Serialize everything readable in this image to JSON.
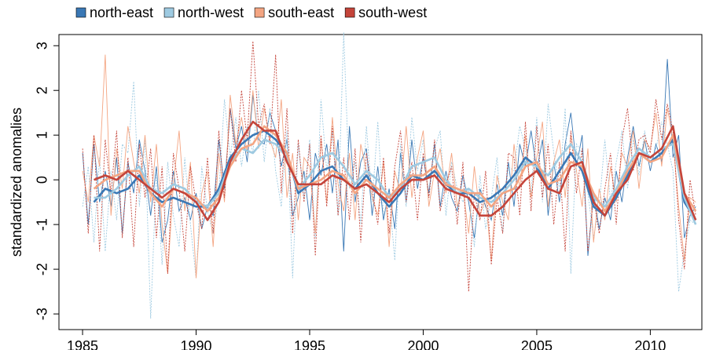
{
  "chart_data": {
    "type": "line",
    "ylabel": "standardized anomalies",
    "xlim": [
      1983.96,
      2012.27
    ],
    "ylim": [
      -3.35,
      3.25
    ],
    "xticks": [
      1985,
      1990,
      1995,
      2000,
      2005,
      2010
    ],
    "yticks": [
      -3,
      -2,
      -1,
      0,
      1,
      2,
      3
    ],
    "x": [
      1985,
      1985.25,
      1985.5,
      1985.75,
      1986,
      1986.25,
      1986.5,
      1986.75,
      1987,
      1987.25,
      1987.5,
      1987.75,
      1988,
      1988.25,
      1988.5,
      1988.75,
      1989,
      1989.25,
      1989.5,
      1989.75,
      1990,
      1990.25,
      1990.5,
      1990.75,
      1991,
      1991.25,
      1991.5,
      1991.75,
      1992,
      1992.25,
      1992.5,
      1992.75,
      1993,
      1993.25,
      1993.5,
      1993.75,
      1994,
      1994.25,
      1994.5,
      1994.75,
      1995,
      1995.25,
      1995.5,
      1995.75,
      1996,
      1996.25,
      1996.5,
      1996.75,
      1997,
      1997.25,
      1997.5,
      1997.75,
      1998,
      1998.25,
      1998.5,
      1998.75,
      1999,
      1999.25,
      1999.5,
      1999.75,
      2000,
      2000.25,
      2000.5,
      2000.75,
      2001,
      2001.25,
      2001.5,
      2001.75,
      2002,
      2002.25,
      2002.5,
      2002.75,
      2003,
      2003.25,
      2003.5,
      2003.75,
      2004,
      2004.25,
      2004.5,
      2004.75,
      2005,
      2005.25,
      2005.5,
      2005.75,
      2006,
      2006.25,
      2006.5,
      2006.75,
      2007,
      2007.25,
      2007.5,
      2007.75,
      2008,
      2008.25,
      2008.5,
      2008.75,
      2009,
      2009.25,
      2009.5,
      2009.75,
      2010,
      2010.25,
      2010.5,
      2010.75,
      2011,
      2011.25,
      2011.5,
      2011.75,
      2012
    ],
    "series": [
      {
        "name": "north-east",
        "color": "#3a78b5",
        "values": [
          0.6,
          -1.0,
          0.8,
          -0.5,
          0.2,
          -0.6,
          0.5,
          -1.2,
          0.4,
          -0.3,
          0.9,
          0.2,
          -0.8,
          0.3,
          -1.4,
          -0.9,
          0.2,
          -0.7,
          -0.4,
          -0.9,
          -0.3,
          -1.1,
          -0.6,
          -0.8,
          0.9,
          -0.2,
          1.6,
          0.7,
          1.2,
          0.4,
          1.9,
          0.9,
          0.8,
          1.5,
          1.1,
          0.3,
          0.9,
          -0.8,
          -0.4,
          0.2,
          -0.9,
          0.6,
          0.1,
          0.8,
          -0.3,
          0.9,
          -1.6,
          1.2,
          -0.5,
          0.4,
          0.7,
          -0.8,
          0.3,
          -0.9,
          -0.2,
          -1.1,
          0.6,
          -0.5,
          0.9,
          -0.2,
          0.5,
          -0.3,
          0.8,
          -0.6,
          0.2,
          -0.4,
          -0.7,
          0.1,
          -0.5,
          -1.3,
          -0.2,
          -0.6,
          -0.9,
          -0.1,
          -0.8,
          0.4,
          -0.6,
          0.8,
          0.3,
          1.1,
          0.2,
          0.9,
          -0.8,
          0.4,
          -0.5,
          0.8,
          1.5,
          0.3,
          1.0,
          -1.7,
          -0.3,
          -1.1,
          -0.4,
          -0.9,
          0.2,
          -0.5,
          0.5,
          1.2,
          0.3,
          0.9,
          0.2,
          0.8,
          0.4,
          2.7,
          0.5,
          1.0,
          -1.3,
          -0.8,
          -0.6
        ]
      },
      {
        "name": "north-west",
        "color": "#9ecae1",
        "values": [
          -0.6,
          0.3,
          -1.4,
          0.5,
          -1.6,
          0.2,
          -0.9,
          0.8,
          0.6,
          2.2,
          -0.6,
          0.9,
          -3.1,
          0.2,
          -1.9,
          0.4,
          -0.8,
          -1.5,
          0.5,
          -1.0,
          -2.2,
          0.3,
          -0.7,
          -1.2,
          -0.3,
          1.8,
          0.5,
          1.4,
          0.3,
          1.2,
          0.6,
          2.0,
          0.4,
          1.6,
          0.2,
          -0.6,
          1.1,
          -2.2,
          0.8,
          -0.4,
          0.9,
          -1.3,
          1.8,
          0.2,
          1.1,
          -0.8,
          3.3,
          -0.2,
          0.4,
          -1.0,
          1.2,
          -0.5,
          1.3,
          -0.8,
          -0.3,
          -1.8,
          0.8,
          -0.6,
          1.4,
          0.2,
          0.9,
          -0.4,
          0.7,
          1.1,
          -0.8,
          0.4,
          -0.2,
          -0.5,
          -0.2,
          -1.5,
          0.1,
          -1.1,
          -0.4,
          0.5,
          -1.2,
          0.3,
          0.2,
          1.2,
          0.7,
          -0.3,
          1.4,
          -0.5,
          1.7,
          0.6,
          -0.2,
          1.6,
          -2.1,
          0.8,
          0.6,
          -0.3,
          -1.3,
          -0.6,
          0.9,
          -0.5,
          0.4,
          1.1,
          -0.2,
          0.9,
          0.1,
          1.1,
          0.4,
          0.7,
          1.3,
          0.8,
          0.2,
          -2.5,
          -1.6,
          -0.9,
          -1.0
        ]
      },
      {
        "name": "south-east",
        "color": "#f4a582",
        "values": [
          0.2,
          -0.5,
          1.0,
          0.3,
          2.8,
          -0.8,
          0.7,
          -0.2,
          1.2,
          0.4,
          -0.3,
          1.0,
          -0.5,
          0.8,
          -1.0,
          -2.1,
          -0.1,
          1.1,
          -0.7,
          0.4,
          -2.2,
          -0.3,
          0.2,
          -1.5,
          0.6,
          -0.5,
          1.9,
          0.8,
          1.4,
          0.6,
          2.0,
          0.7,
          1.6,
          0.9,
          0.5,
          1.8,
          -0.4,
          0.6,
          -0.9,
          0.5,
          0.3,
          -1.2,
          0.9,
          -0.5,
          1.4,
          -0.1,
          -0.7,
          0.6,
          -0.9,
          0.8,
          0.2,
          -0.4,
          -0.8,
          0.4,
          -1.5,
          0.2,
          -0.3,
          1.2,
          -0.4,
          0.5,
          1.1,
          -0.6,
          0.2,
          0.7,
          -0.3,
          0.6,
          -0.6,
          -0.2,
          -1.2,
          0.3,
          -0.8,
          -0.4,
          -1.8,
          0.1,
          -0.5,
          -0.9,
          0.8,
          -0.2,
          1.0,
          -0.4,
          0.5,
          1.3,
          -0.6,
          0.4,
          0.9,
          -0.4,
          1.0,
          0.2,
          -0.6,
          0.7,
          -1.4,
          -0.2,
          -0.9,
          0.3,
          -0.5,
          0.6,
          0.3,
          1.1,
          -0.2,
          0.9,
          0.7,
          1.5,
          0.3,
          1.6,
          0.9,
          -0.6,
          -1.8,
          -0.4,
          -0.5
        ]
      },
      {
        "name": "south-west",
        "color": "#c4443a",
        "values": [
          0.7,
          -1.2,
          1.0,
          -1.6,
          0.9,
          -0.3,
          1.1,
          -1.3,
          0.5,
          -1.5,
          0.8,
          -0.4,
          0.7,
          -1.3,
          0.3,
          -2.1,
          0.6,
          -0.2,
          -1.6,
          0.3,
          -0.5,
          -1.1,
          0.5,
          -1.2,
          1.1,
          -0.4,
          1.6,
          0.4,
          2.0,
          0.9,
          3.1,
          1.2,
          1.7,
          0.8,
          2.8,
          -0.3,
          1.6,
          -1.2,
          0.9,
          -0.5,
          0.8,
          -1.7,
          1.0,
          -0.6,
          1.2,
          -0.8,
          0.5,
          -0.9,
          0.7,
          -1.4,
          0.6,
          -0.2,
          -1.0,
          0.5,
          -1.2,
          0.3,
          1.1,
          -0.5,
          0.4,
          -0.9,
          0.6,
          -0.4,
          0.9,
          -0.7,
          -0.1,
          0.3,
          -1.0,
          0.4,
          -2.5,
          -0.3,
          -0.9,
          0.2,
          -1.9,
          -0.4,
          -1.2,
          0.6,
          0.5,
          -0.8,
          1.3,
          -0.7,
          1.2,
          -0.4,
          0.8,
          -1.0,
          0.4,
          -1.6,
          1.1,
          -0.3,
          0.7,
          -1.6,
          -0.4,
          -1.2,
          -0.2,
          0.6,
          -1.0,
          0.9,
          1.6,
          0.2,
          0.9,
          1.0,
          0.6,
          1.8,
          0.9,
          1.7,
          1.1,
          -0.9,
          -2.0,
          0.0,
          -0.8
        ]
      }
    ],
    "smoothed": {
      "x": [
        1985,
        1985.5,
        1986,
        1986.5,
        1987,
        1987.5,
        1988,
        1988.5,
        1989,
        1989.5,
        1990,
        1990.5,
        1991,
        1991.5,
        1992,
        1992.5,
        1993,
        1993.5,
        1994,
        1994.5,
        1995,
        1995.5,
        1996,
        1996.5,
        1997,
        1997.5,
        1998,
        1998.5,
        1999,
        1999.5,
        2000,
        2000.5,
        2001,
        2001.5,
        2002,
        2002.5,
        2003,
        2003.5,
        2004,
        2004.5,
        2005,
        2005.5,
        2006,
        2006.5,
        2007,
        2007.5,
        2008,
        2008.5,
        2009,
        2009.5,
        2010,
        2010.5,
        2011,
        2011.5,
        2012
      ],
      "series": [
        {
          "color": "#3a78b5",
          "values": [
            null,
            -0.5,
            -0.2,
            -0.3,
            -0.2,
            0.1,
            -0.3,
            -0.5,
            -0.4,
            -0.5,
            -0.6,
            -0.6,
            -0.2,
            0.5,
            0.8,
            1.0,
            1.1,
            0.9,
            0.6,
            -0.3,
            -0.1,
            0.2,
            0.3,
            0.0,
            -0.2,
            0.1,
            -0.3,
            -0.6,
            -0.3,
            0.1,
            0.0,
            0.2,
            -0.1,
            -0.3,
            -0.3,
            -0.5,
            -0.4,
            -0.2,
            0.1,
            0.5,
            0.3,
            -0.2,
            0.2,
            0.6,
            0.2,
            -0.6,
            -0.8,
            -0.4,
            0.1,
            0.6,
            0.4,
            0.6,
            0.9,
            -0.5,
            -0.9
          ]
        },
        {
          "color": "#9ecae1",
          "values": [
            null,
            -0.4,
            -0.4,
            -0.2,
            0.1,
            0.3,
            -0.2,
            -0.3,
            -0.1,
            -0.2,
            -0.5,
            -0.6,
            -0.3,
            0.4,
            0.7,
            0.6,
            0.9,
            0.8,
            0.5,
            -0.2,
            0.1,
            0.5,
            0.6,
            0.3,
            -0.1,
            0.2,
            0.0,
            -0.4,
            -0.2,
            0.3,
            0.4,
            0.5,
            0.0,
            -0.3,
            -0.2,
            -0.4,
            -0.5,
            -0.3,
            0.0,
            0.4,
            0.3,
            0.1,
            0.5,
            0.8,
            0.4,
            -0.4,
            -0.6,
            -0.2,
            0.3,
            0.7,
            0.5,
            0.7,
            0.8,
            -0.4,
            -1.0
          ]
        },
        {
          "color": "#f4a582",
          "values": [
            null,
            -0.2,
            0.0,
            0.1,
            0.2,
            0.2,
            -0.3,
            -0.6,
            -0.2,
            -0.3,
            -0.4,
            -0.7,
            -0.4,
            0.3,
            0.7,
            0.8,
            1.2,
            1.0,
            0.6,
            -0.2,
            -0.1,
            0.0,
            0.2,
            0.1,
            -0.3,
            0.0,
            -0.2,
            -0.4,
            -0.1,
            0.1,
            0.1,
            0.3,
            -0.1,
            -0.2,
            -0.3,
            -0.3,
            -0.6,
            -0.3,
            -0.2,
            0.3,
            0.4,
            -0.1,
            0.0,
            0.4,
            0.3,
            -0.3,
            -0.7,
            -0.3,
            0.2,
            0.6,
            0.4,
            0.5,
            1.0,
            -0.3,
            -0.7
          ]
        },
        {
          "color": "#c4443a",
          "values": [
            null,
            0.0,
            0.1,
            0.0,
            0.2,
            0.0,
            -0.2,
            -0.4,
            -0.2,
            -0.3,
            -0.5,
            -0.9,
            -0.5,
            0.4,
            0.9,
            1.3,
            1.1,
            1.1,
            0.4,
            -0.1,
            -0.1,
            -0.1,
            0.1,
            0.0,
            -0.2,
            -0.1,
            -0.3,
            -0.5,
            -0.2,
            0.0,
            0.0,
            0.1,
            -0.2,
            -0.3,
            -0.4,
            -0.8,
            -0.8,
            -0.6,
            -0.3,
            0.0,
            0.2,
            -0.2,
            -0.3,
            0.3,
            0.4,
            -0.5,
            -0.8,
            -0.3,
            0.0,
            0.6,
            0.5,
            0.7,
            1.2,
            -0.3,
            -0.9
          ]
        }
      ]
    }
  }
}
